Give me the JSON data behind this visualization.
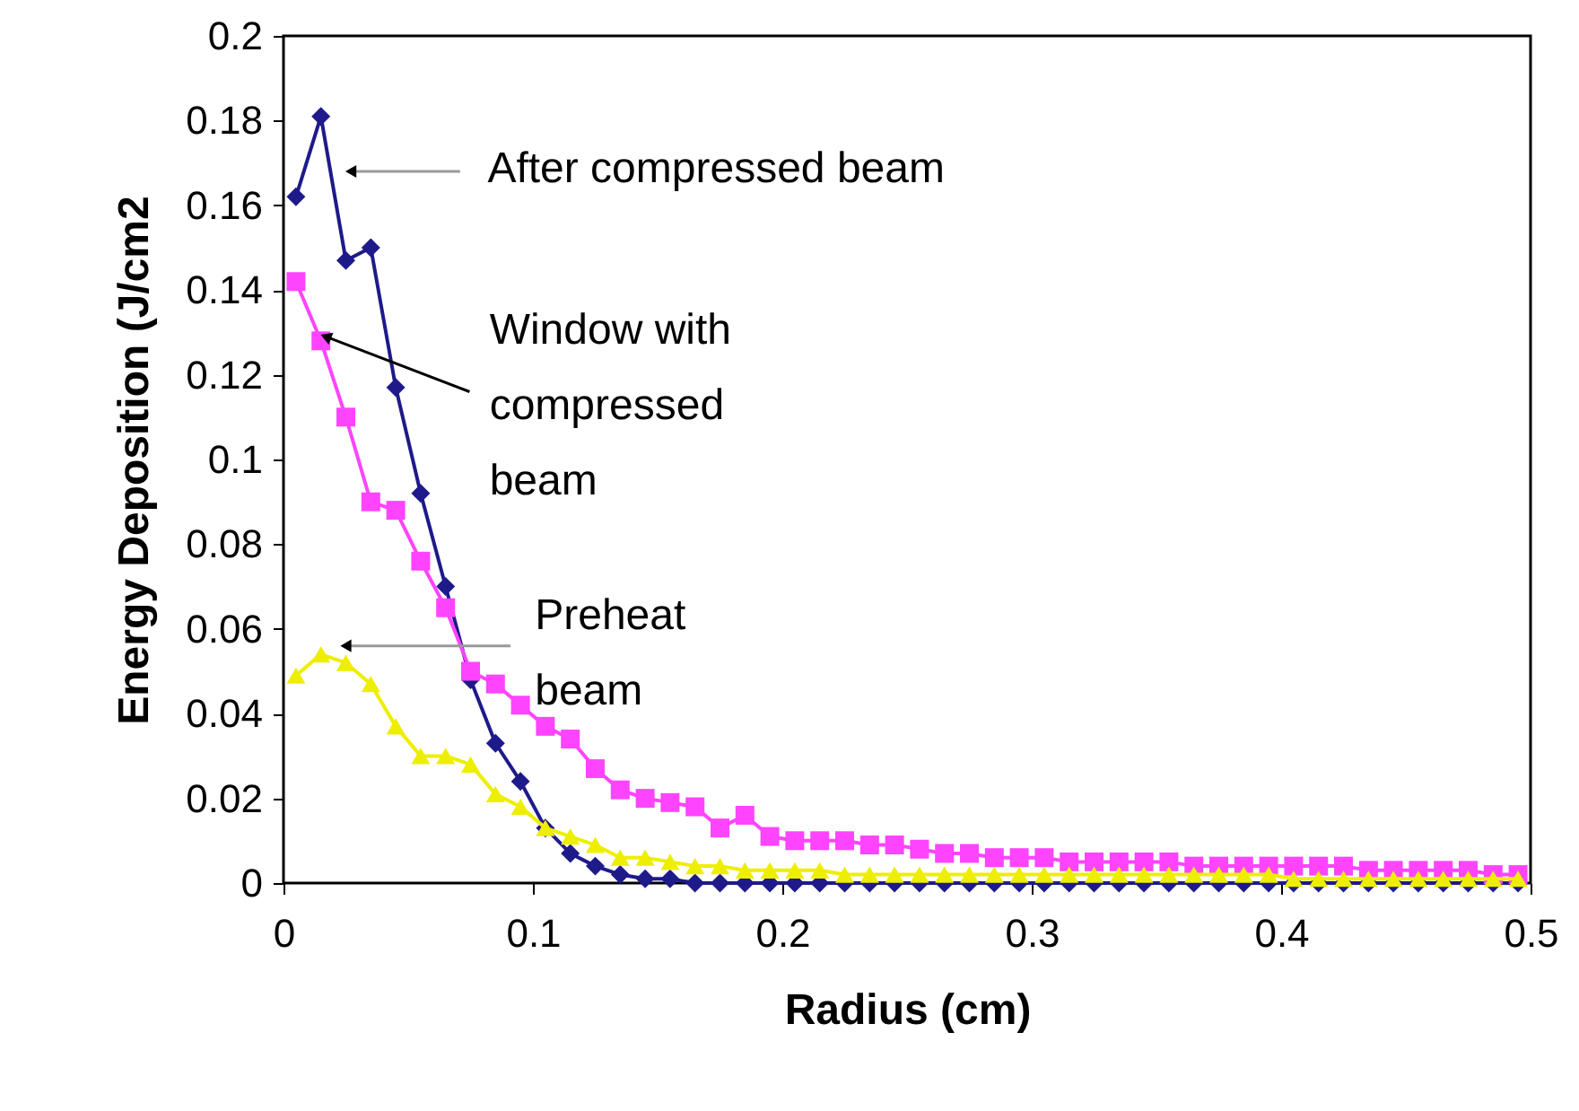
{
  "chart_data": {
    "type": "line",
    "xlabel": "Radius (cm)",
    "ylabel": "Energy Deposition (J/cm2",
    "x": [
      0.005,
      0.015,
      0.025,
      0.035,
      0.045,
      0.055,
      0.065,
      0.075,
      0.085,
      0.095,
      0.105,
      0.115,
      0.125,
      0.135,
      0.145,
      0.155,
      0.165,
      0.175,
      0.185,
      0.195,
      0.205,
      0.215,
      0.225,
      0.235,
      0.245,
      0.255,
      0.265,
      0.275,
      0.285,
      0.295,
      0.305,
      0.315,
      0.325,
      0.335,
      0.345,
      0.355,
      0.365,
      0.375,
      0.385,
      0.395,
      0.405,
      0.415,
      0.425,
      0.435,
      0.445,
      0.455,
      0.465,
      0.475,
      0.485,
      0.495
    ],
    "series": [
      {
        "color": "#1f1a8a",
        "marker": "diamond",
        "values": [
          0.162,
          0.181,
          0.147,
          0.15,
          0.117,
          0.092,
          0.07,
          0.048,
          0.033,
          0.024,
          0.013,
          0.007,
          0.004,
          0.002,
          0.001,
          0.001,
          0,
          0,
          0,
          0,
          0,
          0,
          0,
          0,
          0,
          0,
          0,
          0,
          0,
          0,
          0,
          0,
          0,
          0,
          0,
          0,
          0,
          0,
          0,
          0,
          0,
          0,
          0,
          0,
          0,
          0,
          0,
          0,
          0,
          0
        ]
      },
      {
        "color": "#ff44ff",
        "marker": "square",
        "values": [
          0.142,
          0.128,
          0.11,
          0.09,
          0.088,
          0.076,
          0.065,
          0.05,
          0.047,
          0.042,
          0.037,
          0.034,
          0.027,
          0.022,
          0.02,
          0.019,
          0.018,
          0.013,
          0.016,
          0.011,
          0.01,
          0.01,
          0.01,
          0.009,
          0.009,
          0.008,
          0.007,
          0.007,
          0.006,
          0.006,
          0.006,
          0.005,
          0.005,
          0.005,
          0.005,
          0.005,
          0.004,
          0.004,
          0.004,
          0.004,
          0.004,
          0.004,
          0.004,
          0.003,
          0.003,
          0.003,
          0.003,
          0.003,
          0.002,
          0.002
        ]
      },
      {
        "color": "#eeee00",
        "marker": "triangle",
        "values": [
          0.049,
          0.054,
          0.052,
          0.047,
          0.037,
          0.03,
          0.03,
          0.028,
          0.021,
          0.018,
          0.013,
          0.011,
          0.009,
          0.006,
          0.006,
          0.005,
          0.004,
          0.004,
          0.003,
          0.003,
          0.003,
          0.003,
          0.002,
          0.002,
          0.002,
          0.002,
          0.002,
          0.002,
          0.002,
          0.002,
          0.002,
          0.002,
          0.002,
          0.002,
          0.002,
          0.002,
          0.002,
          0.002,
          0.002,
          0.002,
          0.001,
          0.001,
          0.001,
          0.001,
          0.001,
          0.001,
          0.001,
          0.001,
          0.001,
          0.001
        ]
      }
    ],
    "annotations": [
      {
        "text": "After compressed beam",
        "x": 0.027,
        "y": 0.168
      },
      {
        "text": "Window with\ncompressed\nbeam",
        "x": 0.017,
        "y": 0.129
      },
      {
        "text": "Preheat\nbeam",
        "x": 0.025,
        "y": 0.056
      }
    ],
    "xlim": [
      0,
      0.5
    ],
    "xticks": [
      0,
      0.1,
      0.2,
      0.3,
      0.4,
      0.5
    ],
    "ylim": [
      0,
      0.2
    ],
    "yticks": [
      0,
      0.02,
      0.04,
      0.06,
      0.08,
      0.1,
      0.12,
      0.14,
      0.16,
      0.18,
      0.2
    ],
    "grid": false
  }
}
